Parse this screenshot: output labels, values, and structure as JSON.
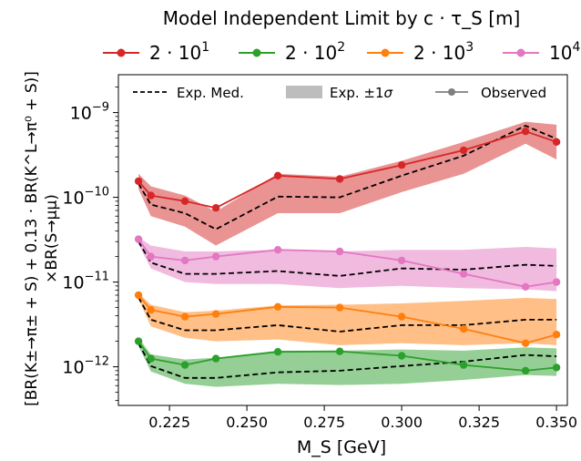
{
  "chart_data": {
    "type": "line",
    "legend_title": "Model Independent Limit by c · τ_S [m]",
    "xlabel": "M_S [GeV]",
    "ylabel_line1": "[BR(K±→π± + S) + 0.13 · BR(K^L→π⁰ + S)]",
    "ylabel_line2": "×BR(S→μμ)",
    "y_scale": "log",
    "xlim": [
      0.2085,
      0.3535
    ],
    "ylim": [
      3.5e-13,
      2.8e-09
    ],
    "x_ticks": [
      0.225,
      0.25,
      0.275,
      0.3,
      0.325,
      0.35
    ],
    "x_tick_labels": [
      "0.225",
      "0.250",
      "0.275",
      "0.300",
      "0.325",
      "0.350"
    ],
    "y_ticks": [
      1e-12,
      1e-11,
      1e-10,
      1e-09
    ],
    "y_tick_labels": [
      {
        "base": "10",
        "exp": "−12"
      },
      {
        "base": "10",
        "exp": "−11"
      },
      {
        "base": "10",
        "exp": "−10"
      },
      {
        "base": "10",
        "exp": "−9"
      }
    ],
    "x": [
      0.215,
      0.219,
      0.23,
      0.24,
      0.26,
      0.28,
      0.3,
      0.32,
      0.34,
      0.35
    ],
    "series": [
      {
        "name": "2 · 10¹",
        "label_base": "2 · 10",
        "label_exp": "1",
        "color": "#d62728",
        "observed": [
          1.55e-10,
          1.05e-10,
          9e-11,
          7.5e-11,
          1.8e-10,
          1.65e-10,
          2.4e-10,
          3.6e-10,
          6e-10,
          4.5e-10
        ],
        "expected_median": [
          1.45e-10,
          8.2e-11,
          6.5e-11,
          4.2e-11,
          1.02e-10,
          1e-10,
          1.8e-10,
          3.1e-10,
          7e-10,
          4.9e-10
        ],
        "band_low": [
          1.25e-10,
          6e-11,
          4.5e-11,
          2.7e-11,
          6.5e-11,
          6.5e-11,
          1.15e-10,
          1.9e-10,
          4.3e-10,
          2.8e-10
        ],
        "band_high": [
          1.9e-10,
          1.35e-10,
          1.05e-10,
          6.8e-11,
          1.9e-10,
          1.75e-10,
          2.7e-10,
          4.5e-10,
          7.8e-10,
          7.2e-10
        ]
      },
      {
        "name": "2 · 10²",
        "label_base": "2 · 10",
        "label_exp": "2",
        "color": "#2ca02c",
        "observed": [
          2e-12,
          1.25e-12,
          1.05e-12,
          1.25e-12,
          1.5e-12,
          1.52e-12,
          1.35e-12,
          1.05e-12,
          9e-13,
          9.8e-13
        ],
        "expected_median": [
          1.9e-12,
          1.02e-12,
          7.4e-13,
          7.4e-13,
          8.6e-13,
          9e-13,
          1.02e-12,
          1.15e-12,
          1.38e-12,
          1.33e-12
        ],
        "band_low": [
          1.75e-12,
          8.8e-13,
          6.3e-13,
          5.8e-13,
          6.3e-13,
          6.1e-13,
          6.3e-13,
          7e-13,
          8e-13,
          7.8e-13
        ],
        "band_high": [
          2.2e-12,
          1.4e-12,
          1.22e-12,
          1.28e-12,
          1.55e-12,
          1.55e-12,
          1.6e-12,
          1.55e-12,
          1.7e-12,
          1.65e-12
        ]
      },
      {
        "name": "2 · 10³",
        "label_base": "2 · 10",
        "label_exp": "3",
        "color": "#ff7f0e",
        "observed": [
          7e-12,
          4.7e-12,
          3.9e-12,
          4.2e-12,
          5.1e-12,
          5e-12,
          3.9e-12,
          2.8e-12,
          1.9e-12,
          2.4e-12
        ],
        "expected_median": [
          6.6e-12,
          3.6e-12,
          2.7e-12,
          2.7e-12,
          3.1e-12,
          2.6e-12,
          3.1e-12,
          3.1e-12,
          3.6e-12,
          3.6e-12
        ],
        "band_low": [
          6.3e-12,
          3e-12,
          2.2e-12,
          2e-12,
          2.1e-12,
          1.8e-12,
          1.9e-12,
          1.8e-12,
          1.9e-12,
          1.8e-12
        ],
        "band_high": [
          7.4e-12,
          5.4e-12,
          4.4e-12,
          4.6e-12,
          5.3e-12,
          5.4e-12,
          5.6e-12,
          6e-12,
          6.5e-12,
          6.3e-12
        ]
      },
      {
        "name": "10⁴",
        "label_base": "10",
        "label_exp": "4",
        "color": "#e377c2",
        "observed": [
          3.2e-11,
          2e-11,
          1.8e-11,
          2e-11,
          2.4e-11,
          2.3e-11,
          1.8e-11,
          1.25e-11,
          8.8e-12,
          1e-11
        ],
        "expected_median": [
          3e-11,
          1.7e-11,
          1.25e-11,
          1.25e-11,
          1.35e-11,
          1.18e-11,
          1.45e-11,
          1.4e-11,
          1.6e-11,
          1.55e-11
        ],
        "band_low": [
          2.8e-11,
          1.45e-11,
          1e-11,
          9.5e-12,
          9.5e-12,
          8.5e-12,
          9e-12,
          8.5e-12,
          8.2e-12,
          7.8e-12
        ],
        "band_high": [
          3.4e-11,
          2.7e-11,
          2.3e-11,
          2.3e-11,
          2.4e-11,
          2.3e-11,
          2.4e-11,
          2.4e-11,
          2.6e-11,
          2.5e-11
        ]
      }
    ],
    "style_legend": {
      "median_label": "Exp. Med.",
      "band_label_text": "Exp. ±1",
      "band_label_sigma": "σ",
      "observed_label": "Observed",
      "placement": "top"
    },
    "grid": false,
    "legend_placement": "top-center"
  }
}
